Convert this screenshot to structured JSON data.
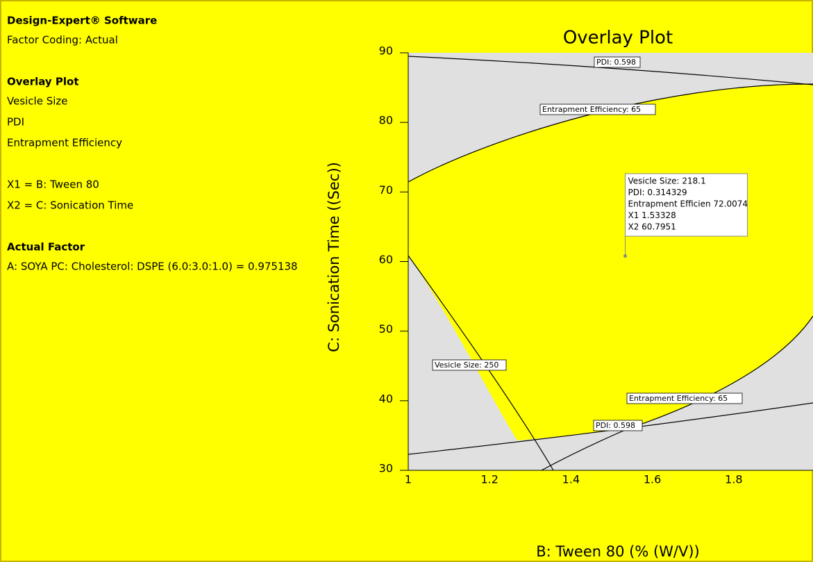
{
  "chart_data": {
    "type": "overlay",
    "title": "Overlay Plot",
    "xlabel": "B: Tween 80 (% (W/V))",
    "ylabel": "C: Sonication Time ((Sec))",
    "xlim": [
      1,
      2
    ],
    "xticks": [
      1,
      1.2,
      1.4,
      1.6,
      1.8
    ],
    "ylim": [
      30,
      90
    ],
    "yticks": [
      30,
      40,
      50,
      60,
      70,
      80,
      90
    ],
    "side_text": [
      {
        "heading": "Design-Expert® Software",
        "lines": [
          "Factor Coding: Actual"
        ]
      },
      {
        "heading": "Overlay Plot",
        "lines": [
          "Vesicle Size",
          "PDI",
          "Entrapment Efficiency"
        ]
      },
      {
        "lines": [
          "X1 = B: Tween 80",
          "X2 = C: Sonication Time"
        ]
      },
      {
        "heading": "Actual Factor",
        "lines": [
          "A: SOYA PC: Cholesterol: DSPE (6.0:3.0:1.0) = 0.975138"
        ]
      }
    ],
    "contour_labels": [
      "PDI: 0.598",
      "Entrapment Efficiency: 65",
      "Vesicle Size: 250",
      "Entrapment Efficiency: 65",
      "PDI: 0.598"
    ],
    "flag": {
      "x": 1.53328,
      "y": 60.7951,
      "text": [
        "Vesicle Size:   218.1",
        "PDI:   0.314329",
        "Entrapment Efficien  72.0074",
        "X1  1.53328",
        "X2  60.7951"
      ]
    }
  }
}
